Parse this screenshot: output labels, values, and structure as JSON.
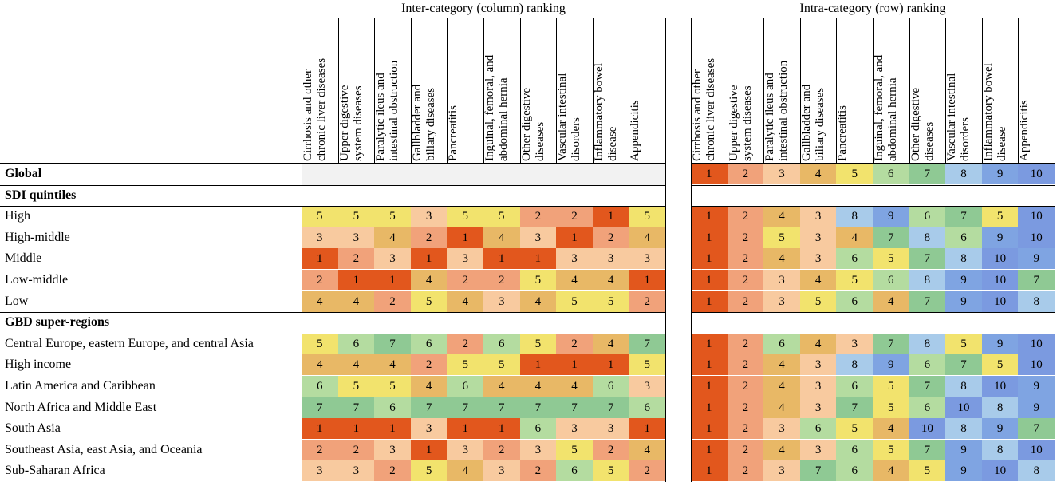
{
  "chart_data": {
    "type": "heatmap",
    "titles": {
      "left": "Inter-category (column) ranking",
      "right": "Intra-category (row) ranking"
    },
    "columns": [
      "Cirrhosis and other chronic liver diseases",
      "Upper digestive system diseases",
      "Paralytic ileus and intestinal obstruction",
      "Gallbladder and biliary diseases",
      "Pancreatitis",
      "Inguinal, femoral, and abdominal hernia",
      "Other digestive diseases",
      "Vascular intestinal disorders",
      "Inflammatory bowel disease",
      "Appendicitis"
    ],
    "column_headers": [
      "Cirrhosis and other\nchronic liver diseases",
      "Upper digestive\nsystem diseases",
      "Paralytic ileus and\nintestinal obstruction",
      "Gallbladder and\nbiliary diseases",
      "Pancreatitis",
      "Inguinal, femoral, and\nabdominal hernia",
      "Other digestive\ndiseases",
      "Vascular intestinal\ndisorders",
      "Inflammatory bowel\ndisease",
      "Appendicitis"
    ],
    "rows": [
      {
        "label": "Global",
        "kind": "section",
        "inter": null,
        "intra": [
          1,
          2,
          3,
          4,
          5,
          6,
          7,
          8,
          9,
          10
        ]
      },
      {
        "label": "SDI quintiles",
        "kind": "section",
        "inter": null,
        "intra": null
      },
      {
        "label": "High",
        "kind": "data",
        "inter": [
          5,
          5,
          5,
          3,
          5,
          5,
          2,
          2,
          1,
          5
        ],
        "intra": [
          1,
          2,
          4,
          3,
          8,
          9,
          6,
          7,
          5,
          10
        ]
      },
      {
        "label": "High-middle",
        "kind": "data",
        "inter": [
          3,
          3,
          4,
          2,
          1,
          4,
          3,
          1,
          2,
          4
        ],
        "intra": [
          1,
          2,
          5,
          3,
          4,
          7,
          8,
          6,
          9,
          10
        ]
      },
      {
        "label": "Middle",
        "kind": "data",
        "inter": [
          1,
          2,
          3,
          1,
          3,
          1,
          1,
          3,
          3,
          3
        ],
        "intra": [
          1,
          2,
          4,
          3,
          6,
          5,
          7,
          8,
          10,
          9
        ]
      },
      {
        "label": "Low-middle",
        "kind": "data",
        "inter": [
          2,
          1,
          1,
          4,
          2,
          2,
          5,
          4,
          4,
          1
        ],
        "intra": [
          1,
          2,
          3,
          4,
          5,
          6,
          8,
          9,
          10,
          7
        ]
      },
      {
        "label": "Low",
        "kind": "data",
        "inter": [
          4,
          4,
          2,
          5,
          4,
          3,
          4,
          5,
          5,
          2
        ],
        "intra": [
          1,
          2,
          3,
          5,
          6,
          4,
          7,
          9,
          10,
          8
        ]
      },
      {
        "label": "GBD super-regions",
        "kind": "section",
        "inter": null,
        "intra": null
      },
      {
        "label": "Central Europe, eastern Europe, and central Asia",
        "kind": "data",
        "inter": [
          5,
          6,
          7,
          6,
          2,
          6,
          5,
          2,
          4,
          7
        ],
        "intra": [
          1,
          2,
          6,
          4,
          3,
          7,
          8,
          5,
          9,
          10
        ]
      },
      {
        "label": "High income",
        "kind": "data",
        "inter": [
          4,
          4,
          4,
          2,
          5,
          5,
          1,
          1,
          1,
          5
        ],
        "intra": [
          1,
          2,
          4,
          3,
          8,
          9,
          6,
          7,
          5,
          10
        ]
      },
      {
        "label": "Latin America and Caribbean",
        "kind": "data",
        "inter": [
          6,
          5,
          5,
          4,
          6,
          4,
          4,
          4,
          6,
          3
        ],
        "intra": [
          1,
          2,
          4,
          3,
          6,
          5,
          7,
          8,
          10,
          9
        ]
      },
      {
        "label": "North Africa and Middle East",
        "kind": "data",
        "inter": [
          7,
          7,
          6,
          7,
          7,
          7,
          7,
          7,
          7,
          6
        ],
        "intra": [
          1,
          2,
          4,
          3,
          7,
          5,
          6,
          10,
          8,
          9
        ]
      },
      {
        "label": "South Asia",
        "kind": "data",
        "inter": [
          1,
          1,
          1,
          3,
          1,
          1,
          6,
          3,
          3,
          1
        ],
        "intra": [
          1,
          2,
          3,
          6,
          5,
          4,
          10,
          8,
          9,
          7
        ]
      },
      {
        "label": "Southeast Asia, east Asia, and Oceania",
        "kind": "data",
        "inter": [
          2,
          2,
          3,
          1,
          3,
          2,
          3,
          5,
          2,
          4
        ],
        "intra": [
          1,
          2,
          4,
          3,
          6,
          5,
          7,
          9,
          8,
          10
        ]
      },
      {
        "label": "Sub-Saharan Africa",
        "kind": "data",
        "inter": [
          3,
          3,
          2,
          5,
          4,
          3,
          2,
          6,
          5,
          2
        ],
        "intra": [
          1,
          2,
          3,
          7,
          6,
          4,
          5,
          9,
          10,
          8
        ]
      }
    ],
    "colors": {
      "inter_scale": {
        "1": "#e2571d",
        "2": "#f1a27a",
        "3": "#f8ca9f",
        "4": "#e8b866",
        "5": "#f2e36d",
        "6": "#b4dca0",
        "7": "#8fc994"
      },
      "intra_scale": {
        "1": "#e2571d",
        "2": "#f1a27a",
        "3": "#f8ca9f",
        "4": "#e8b866",
        "5": "#f2e36d",
        "6": "#b4dca0",
        "7": "#8fc994",
        "8": "#a8cbea",
        "9": "#7fa4e2",
        "10": "#7b9ae0"
      },
      "global_inter_fill": "#f2f2f2"
    }
  }
}
